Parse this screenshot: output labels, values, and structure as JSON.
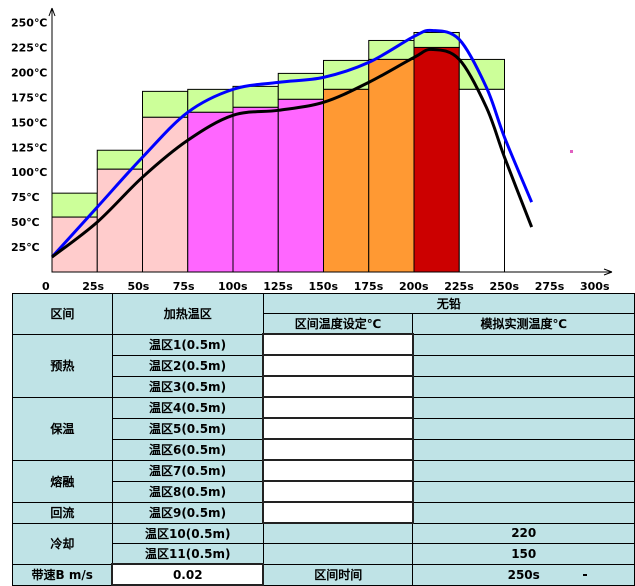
{
  "chart_data": {
    "type": "bar",
    "x_ticks": [
      "0",
      "25s",
      "50s",
      "75s",
      "100s",
      "125s",
      "150s",
      "175s",
      "200s",
      "225s",
      "250s",
      "275s",
      "300s"
    ],
    "y_ticks": [
      "25℃",
      "50℃",
      "75℃",
      "100℃",
      "125℃",
      "150℃",
      "175℃",
      "200℃",
      "225℃",
      "250℃"
    ],
    "ylim": [
      0,
      270
    ],
    "xlim": [
      0,
      300
    ],
    "zones": [
      {
        "start": 0,
        "end": 25,
        "base": 55,
        "top": 79,
        "color": "#ffcccc"
      },
      {
        "start": 25,
        "end": 50,
        "base": 103,
        "top": 122,
        "color": "#ffcccc"
      },
      {
        "start": 50,
        "end": 75,
        "base": 155,
        "top": 181,
        "color": "#ffcccc"
      },
      {
        "start": 75,
        "end": 100,
        "base": 160,
        "top": 183,
        "color": "#ff66ff"
      },
      {
        "start": 100,
        "end": 125,
        "base": 165,
        "top": 186,
        "color": "#ff66ff"
      },
      {
        "start": 125,
        "end": 150,
        "base": 173,
        "top": 199,
        "color": "#ff66ff"
      },
      {
        "start": 150,
        "end": 175,
        "base": 183,
        "top": 212,
        "color": "#ff9933"
      },
      {
        "start": 175,
        "end": 200,
        "base": 213,
        "top": 232,
        "color": "#ff9933"
      },
      {
        "start": 200,
        "end": 225,
        "base": 225,
        "top": 240,
        "color": "#cc0000"
      },
      {
        "start": 225,
        "end": 250,
        "base": 183,
        "top": 213,
        "color": "#ffffff"
      }
    ],
    "band_color": "#ccff99",
    "series": [
      {
        "color": "#0000ff",
        "x": [
          0,
          25,
          50,
          75,
          100,
          125,
          150,
          175,
          200,
          210,
          225,
          240,
          250,
          265
        ],
        "y": [
          15,
          65,
          115,
          160,
          183,
          190,
          195,
          210,
          236,
          242,
          233,
          185,
          135,
          70
        ]
      },
      {
        "color": "#000000",
        "x": [
          0,
          25,
          50,
          75,
          100,
          125,
          150,
          175,
          200,
          210,
          225,
          240,
          250,
          265
        ],
        "y": [
          15,
          50,
          95,
          132,
          157,
          162,
          170,
          190,
          215,
          223,
          213,
          165,
          115,
          45
        ]
      }
    ]
  },
  "table": {
    "header": {
      "zone_col": "区间",
      "heat_col": "加热温区",
      "group": "无铅",
      "set_col": "区间温度设定℃",
      "measured_col": "模拟实测温度℃"
    },
    "sections": [
      {
        "name": "预热"
      },
      {
        "name": "保温"
      },
      {
        "name": "熔融"
      },
      {
        "name": "回流"
      },
      {
        "name": "冷却"
      }
    ],
    "zones": [
      {
        "label": "温区1(0.5m)",
        "set": "",
        "measured": ""
      },
      {
        "label": "温区2(0.5m)",
        "set": "",
        "measured": ""
      },
      {
        "label": "温区3(0.5m)",
        "set": "",
        "measured": ""
      },
      {
        "label": "温区4(0.5m)",
        "set": "",
        "measured": ""
      },
      {
        "label": "温区5(0.5m)",
        "set": "",
        "measured": ""
      },
      {
        "label": "温区6(0.5m)",
        "set": "",
        "measured": ""
      },
      {
        "label": "温区7(0.5m)",
        "set": "",
        "measured": ""
      },
      {
        "label": "温区8(0.5m)",
        "set": "",
        "measured": ""
      },
      {
        "label": "温区9(0.5m)",
        "set": "",
        "measured": ""
      },
      {
        "label": "温区10(0.5m)",
        "set": "",
        "measured": "220"
      },
      {
        "label": "温区11(0.5m)",
        "set": "",
        "measured": "150"
      }
    ],
    "footer": {
      "speed_label": "带速B m/s",
      "speed_value": "0.02",
      "time_label": "区间时间",
      "time_value": "250s"
    }
  }
}
